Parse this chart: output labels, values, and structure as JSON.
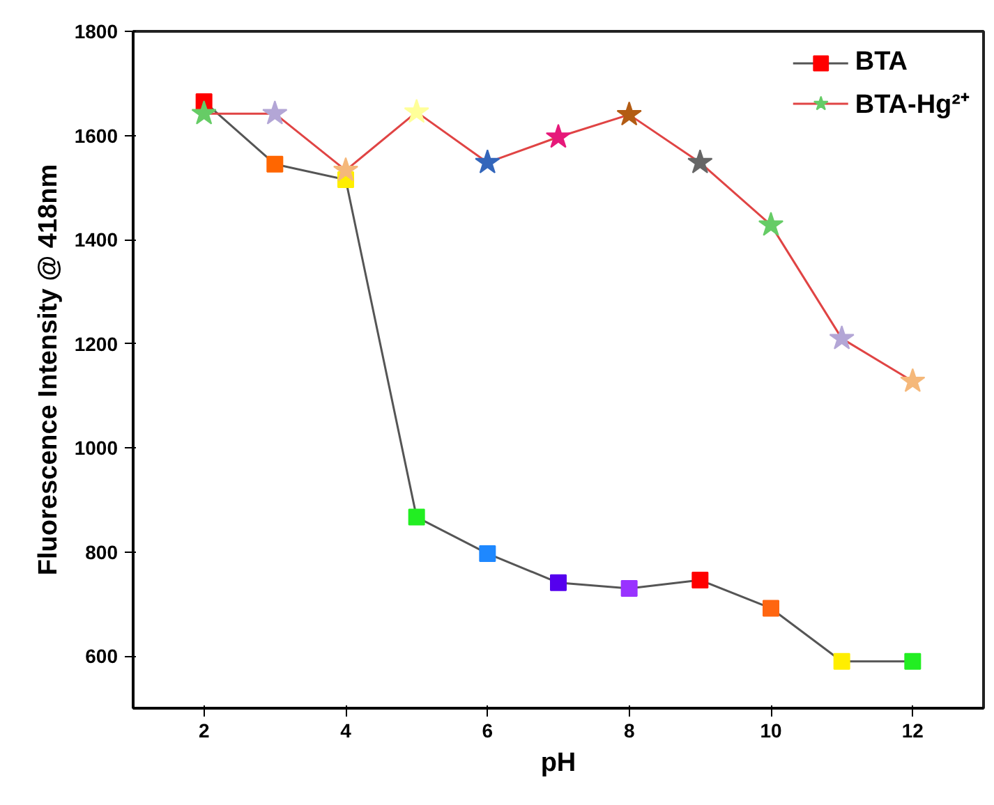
{
  "chart_data": {
    "type": "line",
    "xlabel": "pH",
    "ylabel": "Fluorescence Intensity @ 418nm",
    "x": [
      2,
      3,
      4,
      5,
      6,
      7,
      8,
      9,
      10,
      11,
      12
    ],
    "series": [
      {
        "name": "BTA",
        "color": "#555555",
        "marker": "square",
        "values": [
          1665,
          1545,
          1515,
          867,
          797,
          741,
          730,
          746,
          692,
          590,
          590
        ],
        "colors": [
          "#ff0000",
          "#ff6600",
          "#ffee00",
          "#22ee22",
          "#1e88ff",
          "#5500ee",
          "#9933ff",
          "#ff0000",
          "#ff6611",
          "#ffee00",
          "#22ee22"
        ]
      },
      {
        "name": "BTA-Hg²⁺",
        "color": "#e04444",
        "marker": "star",
        "values": [
          1642,
          1642,
          1533,
          1645,
          1548,
          1597,
          1640,
          1548,
          1428,
          1210,
          1128
        ],
        "colors": [
          "#66cc66",
          "#b3a6d6",
          "#f5b87a",
          "#ffff99",
          "#3366bb",
          "#e6197a",
          "#b35c14",
          "#666666",
          "#66cc66",
          "#b3a6d6",
          "#f5b87a"
        ]
      }
    ],
    "xlim": [
      1,
      13
    ],
    "xticks": [
      2,
      4,
      6,
      8,
      10,
      12
    ],
    "ylim": [
      500,
      1800
    ],
    "yticks": [
      600,
      800,
      1000,
      1200,
      1400,
      1600,
      1800
    ],
    "grid": false,
    "legend": "top right"
  }
}
